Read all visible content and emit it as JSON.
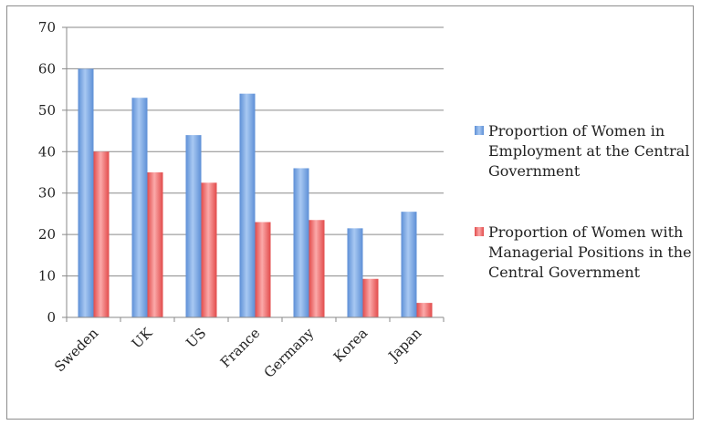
{
  "chart_data": {
    "type": "bar",
    "categories": [
      "Sweden",
      "UK",
      "US",
      "France",
      "Germany",
      "Korea",
      "Japan"
    ],
    "series": [
      {
        "name": "Proportion of Women in Employment at the Central Government",
        "values": [
          60,
          53,
          44,
          54,
          36,
          21.5,
          25.5
        ],
        "color": "#4f81bd"
      },
      {
        "name": "Proportion of Women with Managerial Positions in the Central Government",
        "values": [
          40,
          35,
          32.5,
          23,
          23.5,
          9.3,
          3.5
        ],
        "color": "#e04848"
      }
    ],
    "yticks": [
      "0",
      "10",
      "20",
      "30",
      "40",
      "50",
      "60",
      "70"
    ],
    "ylim": [
      0,
      70
    ],
    "grid": true,
    "legend": "right"
  }
}
